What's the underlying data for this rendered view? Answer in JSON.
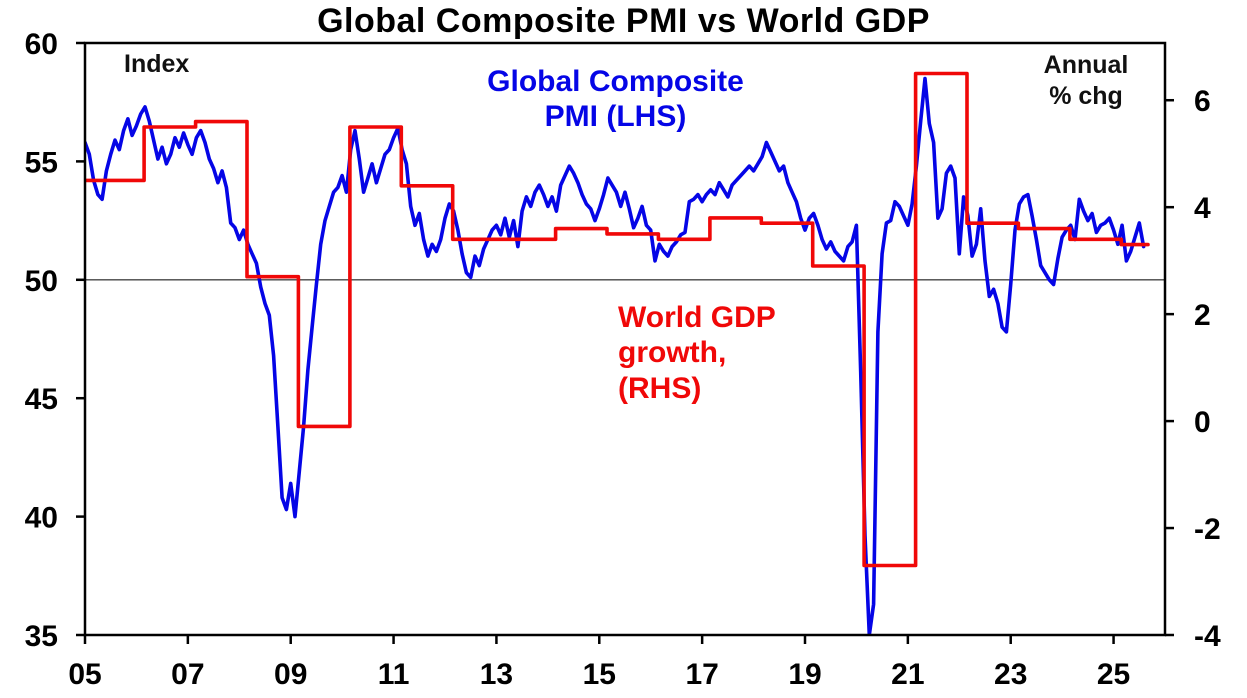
{
  "title": "Global Composite PMI vs World GDP",
  "annotations": {
    "left_axis_label": "Index",
    "right_axis_label_line1": "Annual",
    "right_axis_label_line2": "% chg",
    "blue_label_line1": "Global Composite",
    "blue_label_line2": "PMI (LHS)",
    "red_label_line1": "World GDP",
    "red_label_line2": "growth,",
    "red_label_line3": "(RHS)"
  },
  "colors": {
    "pmi": "#0505e6",
    "gdp": "#f00808",
    "axis": "#000000",
    "reference_line": "#444444",
    "background": "#ffffff"
  },
  "chart_data": {
    "type": "line",
    "title": "Global Composite PMI vs World GDP",
    "grid": false,
    "x_range": [
      2005,
      2026
    ],
    "x_ticks": [
      {
        "year": 2005,
        "label": "05"
      },
      {
        "year": 2007,
        "label": "07"
      },
      {
        "year": 2009,
        "label": "09"
      },
      {
        "year": 2011,
        "label": "11"
      },
      {
        "year": 2013,
        "label": "13"
      },
      {
        "year": 2015,
        "label": "15"
      },
      {
        "year": 2017,
        "label": "17"
      },
      {
        "year": 2019,
        "label": "19"
      },
      {
        "year": 2021,
        "label": "21"
      },
      {
        "year": 2023,
        "label": "23"
      },
      {
        "year": 2025,
        "label": "25"
      }
    ],
    "left_axis": {
      "label": "Index",
      "ylim": [
        35,
        60
      ],
      "ticks": [
        35,
        40,
        45,
        50,
        55,
        60
      ]
    },
    "right_axis": {
      "label": "Annual % chg",
      "ylim": [
        -4,
        7.07
      ],
      "ticks": [
        -4,
        -2,
        0,
        2,
        4,
        6
      ]
    },
    "reference_line_left": 50,
    "series": [
      {
        "id": "pmi-line",
        "name": "Global Composite PMI (LHS)",
        "axis": "left",
        "color": "#0505e6",
        "style": "line",
        "start_year": 2005.0,
        "step_years": 0.0833333,
        "values": [
          55.8,
          55.3,
          54.2,
          53.6,
          53.4,
          54.6,
          55.3,
          55.9,
          55.5,
          56.3,
          56.8,
          56.1,
          56.5,
          57.0,
          57.3,
          56.7,
          55.9,
          55.1,
          55.6,
          54.9,
          55.3,
          56.0,
          55.6,
          56.2,
          55.7,
          55.3,
          56.0,
          56.3,
          55.8,
          55.1,
          54.7,
          54.1,
          54.6,
          53.9,
          52.4,
          52.2,
          51.7,
          52.1,
          51.5,
          51.1,
          50.7,
          49.7,
          49.0,
          48.5,
          46.8,
          43.8,
          40.8,
          40.3,
          41.4,
          40.0,
          41.9,
          43.8,
          46.2,
          48.0,
          49.8,
          51.5,
          52.5,
          53.1,
          53.7,
          53.9,
          54.4,
          53.7,
          55.5,
          56.3,
          55.1,
          53.7,
          54.3,
          54.9,
          54.1,
          54.7,
          55.3,
          55.5,
          56.0,
          56.4,
          55.5,
          54.9,
          53.1,
          52.3,
          52.8,
          51.7,
          51.0,
          51.5,
          51.2,
          51.7,
          52.6,
          53.2,
          52.9,
          52.1,
          51.1,
          50.3,
          50.1,
          51.0,
          50.6,
          51.3,
          51.7,
          52.1,
          52.3,
          51.9,
          52.6,
          51.8,
          52.5,
          51.4,
          52.9,
          53.5,
          53.1,
          53.7,
          54.0,
          53.6,
          53.1,
          53.5,
          52.9,
          54.0,
          54.4,
          54.8,
          54.5,
          54.1,
          53.6,
          53.2,
          53.0,
          52.5,
          53.0,
          53.6,
          54.3,
          54.0,
          53.7,
          53.1,
          53.7,
          53.0,
          52.2,
          52.6,
          53.1,
          52.3,
          52.1,
          50.8,
          51.5,
          51.2,
          51.0,
          51.4,
          51.6,
          51.9,
          52.0,
          53.3,
          53.4,
          53.6,
          53.3,
          53.6,
          53.8,
          53.6,
          54.1,
          53.8,
          53.5,
          54.0,
          54.2,
          54.4,
          54.6,
          54.8,
          54.6,
          54.9,
          55.2,
          55.8,
          55.4,
          55.0,
          54.6,
          54.8,
          54.1,
          53.7,
          53.3,
          52.6,
          52.1,
          52.6,
          52.8,
          52.3,
          51.7,
          51.3,
          51.6,
          51.2,
          51.0,
          50.8,
          51.4,
          51.6,
          52.3,
          46.1,
          39.2,
          35.0,
          36.3,
          47.8,
          51.1,
          52.4,
          52.5,
          53.3,
          53.1,
          52.7,
          52.3,
          53.2,
          54.8,
          56.7,
          58.5,
          56.6,
          55.8,
          52.6,
          53.0,
          54.5,
          54.8,
          54.3,
          51.1,
          53.5,
          52.7,
          51.0,
          51.5,
          53.0,
          50.8,
          49.3,
          49.6,
          49.0,
          48.0,
          47.8,
          49.8,
          52.1,
          53.2,
          53.5,
          53.6,
          52.7,
          51.7,
          50.6,
          50.3,
          50.0,
          49.8,
          50.9,
          51.8,
          52.1,
          52.3,
          51.7,
          53.4,
          52.9,
          52.5,
          52.8,
          52.0,
          52.3,
          52.4,
          52.6,
          52.1,
          51.5,
          52.3,
          50.8,
          51.2,
          51.8,
          52.4,
          51.4
        ]
      },
      {
        "id": "gdp-line",
        "name": "World GDP growth (RHS)",
        "axis": "right",
        "color": "#f00808",
        "style": "step",
        "start_year": 2005,
        "step_offset": 0.15,
        "end_year": 2025.67,
        "values": [
          4.5,
          5.5,
          5.6,
          2.7,
          -0.1,
          5.5,
          4.4,
          3.4,
          3.4,
          3.6,
          3.5,
          3.4,
          3.8,
          3.7,
          2.9,
          -2.7,
          6.5,
          3.7,
          3.6,
          3.4,
          3.3
        ]
      }
    ]
  }
}
